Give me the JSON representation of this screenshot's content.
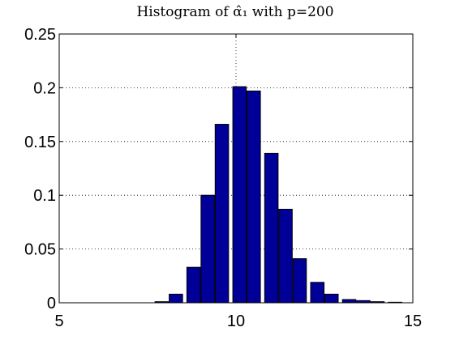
{
  "chart_data": {
    "type": "bar",
    "title": "Histogram of α̂₁ with p=200",
    "xlabel": "",
    "ylabel": "",
    "xlim": [
      5,
      15
    ],
    "ylim": [
      0,
      0.25
    ],
    "x_ticks": [
      5,
      10,
      15
    ],
    "y_ticks": [
      0,
      0.05,
      0.1,
      0.15,
      0.2,
      0.25
    ],
    "x_tick_labels": [
      "5",
      "10",
      "15"
    ],
    "y_tick_labels": [
      "0",
      "0.05",
      "0.1",
      "0.15",
      "0.2",
      "0.25"
    ],
    "grid": "dotted lines at the tick marks",
    "bar_width": 0.38,
    "bar_color": "#000099",
    "x": [
      7.0,
      7.5,
      7.9,
      8.3,
      8.8,
      9.2,
      9.6,
      10.1,
      10.5,
      11.0,
      11.4,
      11.8,
      12.3,
      12.7,
      13.2,
      13.6,
      14.0,
      14.5
    ],
    "values": [
      0.0,
      0.0,
      0.001,
      0.008,
      0.033,
      0.1,
      0.166,
      0.201,
      0.197,
      0.139,
      0.087,
      0.041,
      0.019,
      0.008,
      0.003,
      0.002,
      0.001,
      0.0005
    ]
  }
}
